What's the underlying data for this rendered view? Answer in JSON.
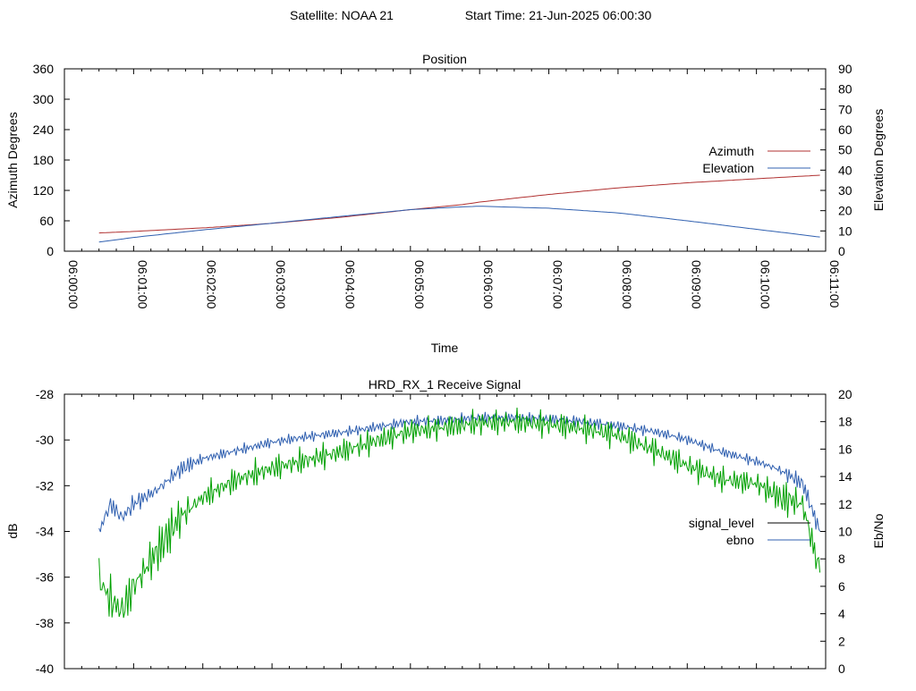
{
  "header": {
    "satellite_label": "Satellite: NOAA 21",
    "start_label": "Start Time: 21-Jun-2025 06:00:30"
  },
  "chart_data": [
    {
      "type": "line",
      "title": "Position",
      "xlabel": "Time",
      "ylabel": "Azimuth Degrees",
      "y2label": "Elevation Degrees",
      "x_ticks": [
        "06:00:00",
        "06:01:00",
        "06:02:00",
        "06:03:00",
        "06:04:00",
        "06:05:00",
        "06:06:00",
        "06:07:00",
        "06:08:00",
        "06:09:00",
        "06:10:00",
        "06:11:00"
      ],
      "xlim_seconds": [
        0,
        660
      ],
      "ylim": [
        0,
        360
      ],
      "y_ticks": [
        0,
        60,
        120,
        180,
        240,
        300,
        360
      ],
      "y2lim": [
        0,
        90
      ],
      "y2_ticks": [
        0,
        10,
        20,
        30,
        40,
        50,
        60,
        70,
        80,
        90
      ],
      "legend_position": "right",
      "series": [
        {
          "name": "Azimuth",
          "axis": "y",
          "color": "#b03030",
          "x": [
            30,
            60,
            120,
            180,
            240,
            300,
            345,
            360,
            420,
            480,
            540,
            600,
            655
          ],
          "y": [
            36,
            39,
            46,
            55,
            67,
            82,
            92,
            97,
            112,
            125,
            135,
            143,
            150
          ]
        },
        {
          "name": "Elevation",
          "axis": "y2",
          "color": "#3060b0",
          "x": [
            30,
            60,
            120,
            180,
            240,
            300,
            345,
            360,
            420,
            480,
            540,
            600,
            655
          ],
          "y": [
            4.5,
            6.8,
            10.5,
            13.8,
            17.2,
            20.5,
            21.9,
            22.2,
            21.2,
            18.9,
            15.0,
            10.8,
            7.0
          ]
        }
      ]
    },
    {
      "type": "line",
      "title": "HRD_RX_1 Receive Signal",
      "xlabel": "",
      "ylabel": "dB",
      "y2label": "Eb/No",
      "xlim_seconds": [
        0,
        660
      ],
      "ylim": [
        -40,
        -28
      ],
      "y_ticks": [
        -40,
        -38,
        -36,
        -34,
        -32,
        -30,
        -28
      ],
      "y2lim": [
        0,
        20
      ],
      "y2_ticks": [
        0,
        2,
        4,
        6,
        8,
        10,
        12,
        14,
        16,
        18,
        20
      ],
      "legend_position": "right",
      "series": [
        {
          "name": "signal_level",
          "axis": "y",
          "color": "#000000",
          "x": [],
          "y": []
        },
        {
          "name": "ebno",
          "axis": "y2",
          "color": "#3060b0",
          "x": [
            30,
            40,
            50,
            60,
            80,
            100,
            120,
            150,
            180,
            210,
            240,
            270,
            300,
            330,
            360,
            390,
            420,
            450,
            480,
            510,
            540,
            570,
            600,
            620,
            640,
            655
          ],
          "y": [
            10.0,
            12.0,
            11.0,
            12.0,
            13.0,
            14.5,
            15.3,
            15.9,
            16.5,
            16.9,
            17.2,
            17.6,
            18.0,
            18.1,
            18.3,
            18.3,
            18.2,
            18.0,
            17.7,
            17.3,
            16.7,
            15.8,
            15.1,
            14.5,
            13.5,
            10.0
          ]
        },
        {
          "name": "",
          "axis": "y2",
          "color": "#00a000",
          "x": [
            30,
            40,
            50,
            60,
            80,
            100,
            120,
            150,
            180,
            210,
            240,
            270,
            300,
            330,
            360,
            390,
            420,
            450,
            480,
            510,
            540,
            570,
            600,
            620,
            640,
            655
          ],
          "y": [
            6.5,
            5.0,
            4.2,
            6.0,
            8.5,
            11.0,
            12.5,
            13.8,
            14.6,
            15.2,
            15.8,
            16.6,
            17.3,
            17.6,
            17.9,
            18.0,
            17.8,
            17.5,
            17.0,
            16.0,
            14.8,
            13.8,
            13.5,
            12.5,
            12.0,
            7.0
          ]
        }
      ]
    }
  ]
}
